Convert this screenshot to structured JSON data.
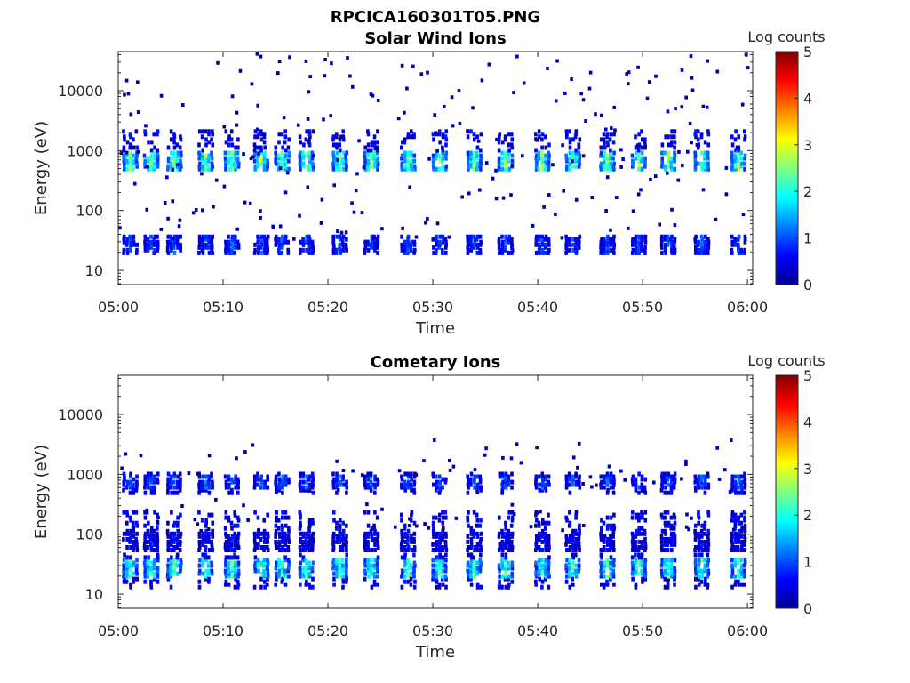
{
  "figure_title": "RPCICA160301T05.PNG",
  "colormap": [
    "#00008f",
    "#0000ff",
    "#0080ff",
    "#00ffff",
    "#80ff80",
    "#ffff00",
    "#ff8000",
    "#ff0000",
    "#800000"
  ],
  "chart_data": [
    {
      "type": "heatmap",
      "title": "Solar Wind Ions",
      "xlabel": "Time",
      "ylabel": "Energy (eV)",
      "y_scale": "log",
      "x_ticks": [
        "05:00",
        "05:10",
        "05:20",
        "05:30",
        "05:40",
        "05:50",
        "06:00"
      ],
      "y_ticks": [
        "10",
        "100",
        "1000",
        "10000"
      ],
      "xlim_minutes": [
        0,
        60.5
      ],
      "ylim_ev": [
        5.8,
        45000
      ],
      "colorbar": {
        "label": "Log counts",
        "ticks": [
          "0",
          "1",
          "2",
          "3",
          "4",
          "5"
        ],
        "range": [
          0,
          5
        ]
      },
      "pulse_times_min": [
        1,
        3,
        5.2,
        8.2,
        10.7,
        13.5,
        15.5,
        17.8,
        21,
        24,
        27.5,
        30.5,
        33.8,
        36.8,
        40.3,
        43.2,
        46.5,
        49.5,
        52.3,
        55.5,
        59
      ],
      "bands": [
        {
          "name": "",
          "energy_ev": [
            450,
            2000
          ],
          "peak": [
            400,
            900
          ],
          "peak_log_counts": 3.0
        },
        {
          "name": "",
          "energy_ev": [
            18,
            36
          ],
          "peak": [
            18,
            36
          ],
          "peak_log_counts": 1.2
        }
      ],
      "scatter_energy_ev": [
        30,
        40000
      ]
    },
    {
      "type": "heatmap",
      "title": "Cometary Ions",
      "xlabel": "Time",
      "ylabel": "Energy (eV)",
      "y_scale": "log",
      "x_ticks": [
        "05:00",
        "05:10",
        "05:20",
        "05:30",
        "05:40",
        "05:50",
        "06:00"
      ],
      "y_ticks": [
        "10",
        "100",
        "1000",
        "10000"
      ],
      "xlim_minutes": [
        0,
        60.5
      ],
      "ylim_ev": [
        5.8,
        45000
      ],
      "colorbar": {
        "label": "Log counts",
        "ticks": [
          "0",
          "1",
          "2",
          "3",
          "4",
          "5"
        ],
        "range": [
          0,
          5
        ]
      },
      "pulse_times_min": [
        1,
        3,
        5.2,
        8.2,
        10.7,
        13.5,
        15.5,
        17.8,
        21,
        24,
        27.5,
        30.5,
        33.8,
        36.8,
        40.3,
        43.2,
        46.5,
        49.5,
        52.3,
        55.5,
        59
      ],
      "bands": [
        {
          "name": "",
          "energy_ev": [
            12,
            45
          ],
          "peak": [
            18,
            36
          ],
          "peak_log_counts": 2.7
        },
        {
          "name": "",
          "energy_ev": [
            50,
            220
          ],
          "peak": [
            50,
            100
          ],
          "peak_log_counts": 0.8
        },
        {
          "name": "",
          "energy_ev": [
            450,
            1000
          ],
          "peak": [
            500,
            900
          ],
          "peak_log_counts": 1.3
        }
      ],
      "scatter_energy_ev": [
        100,
        3500
      ]
    }
  ]
}
